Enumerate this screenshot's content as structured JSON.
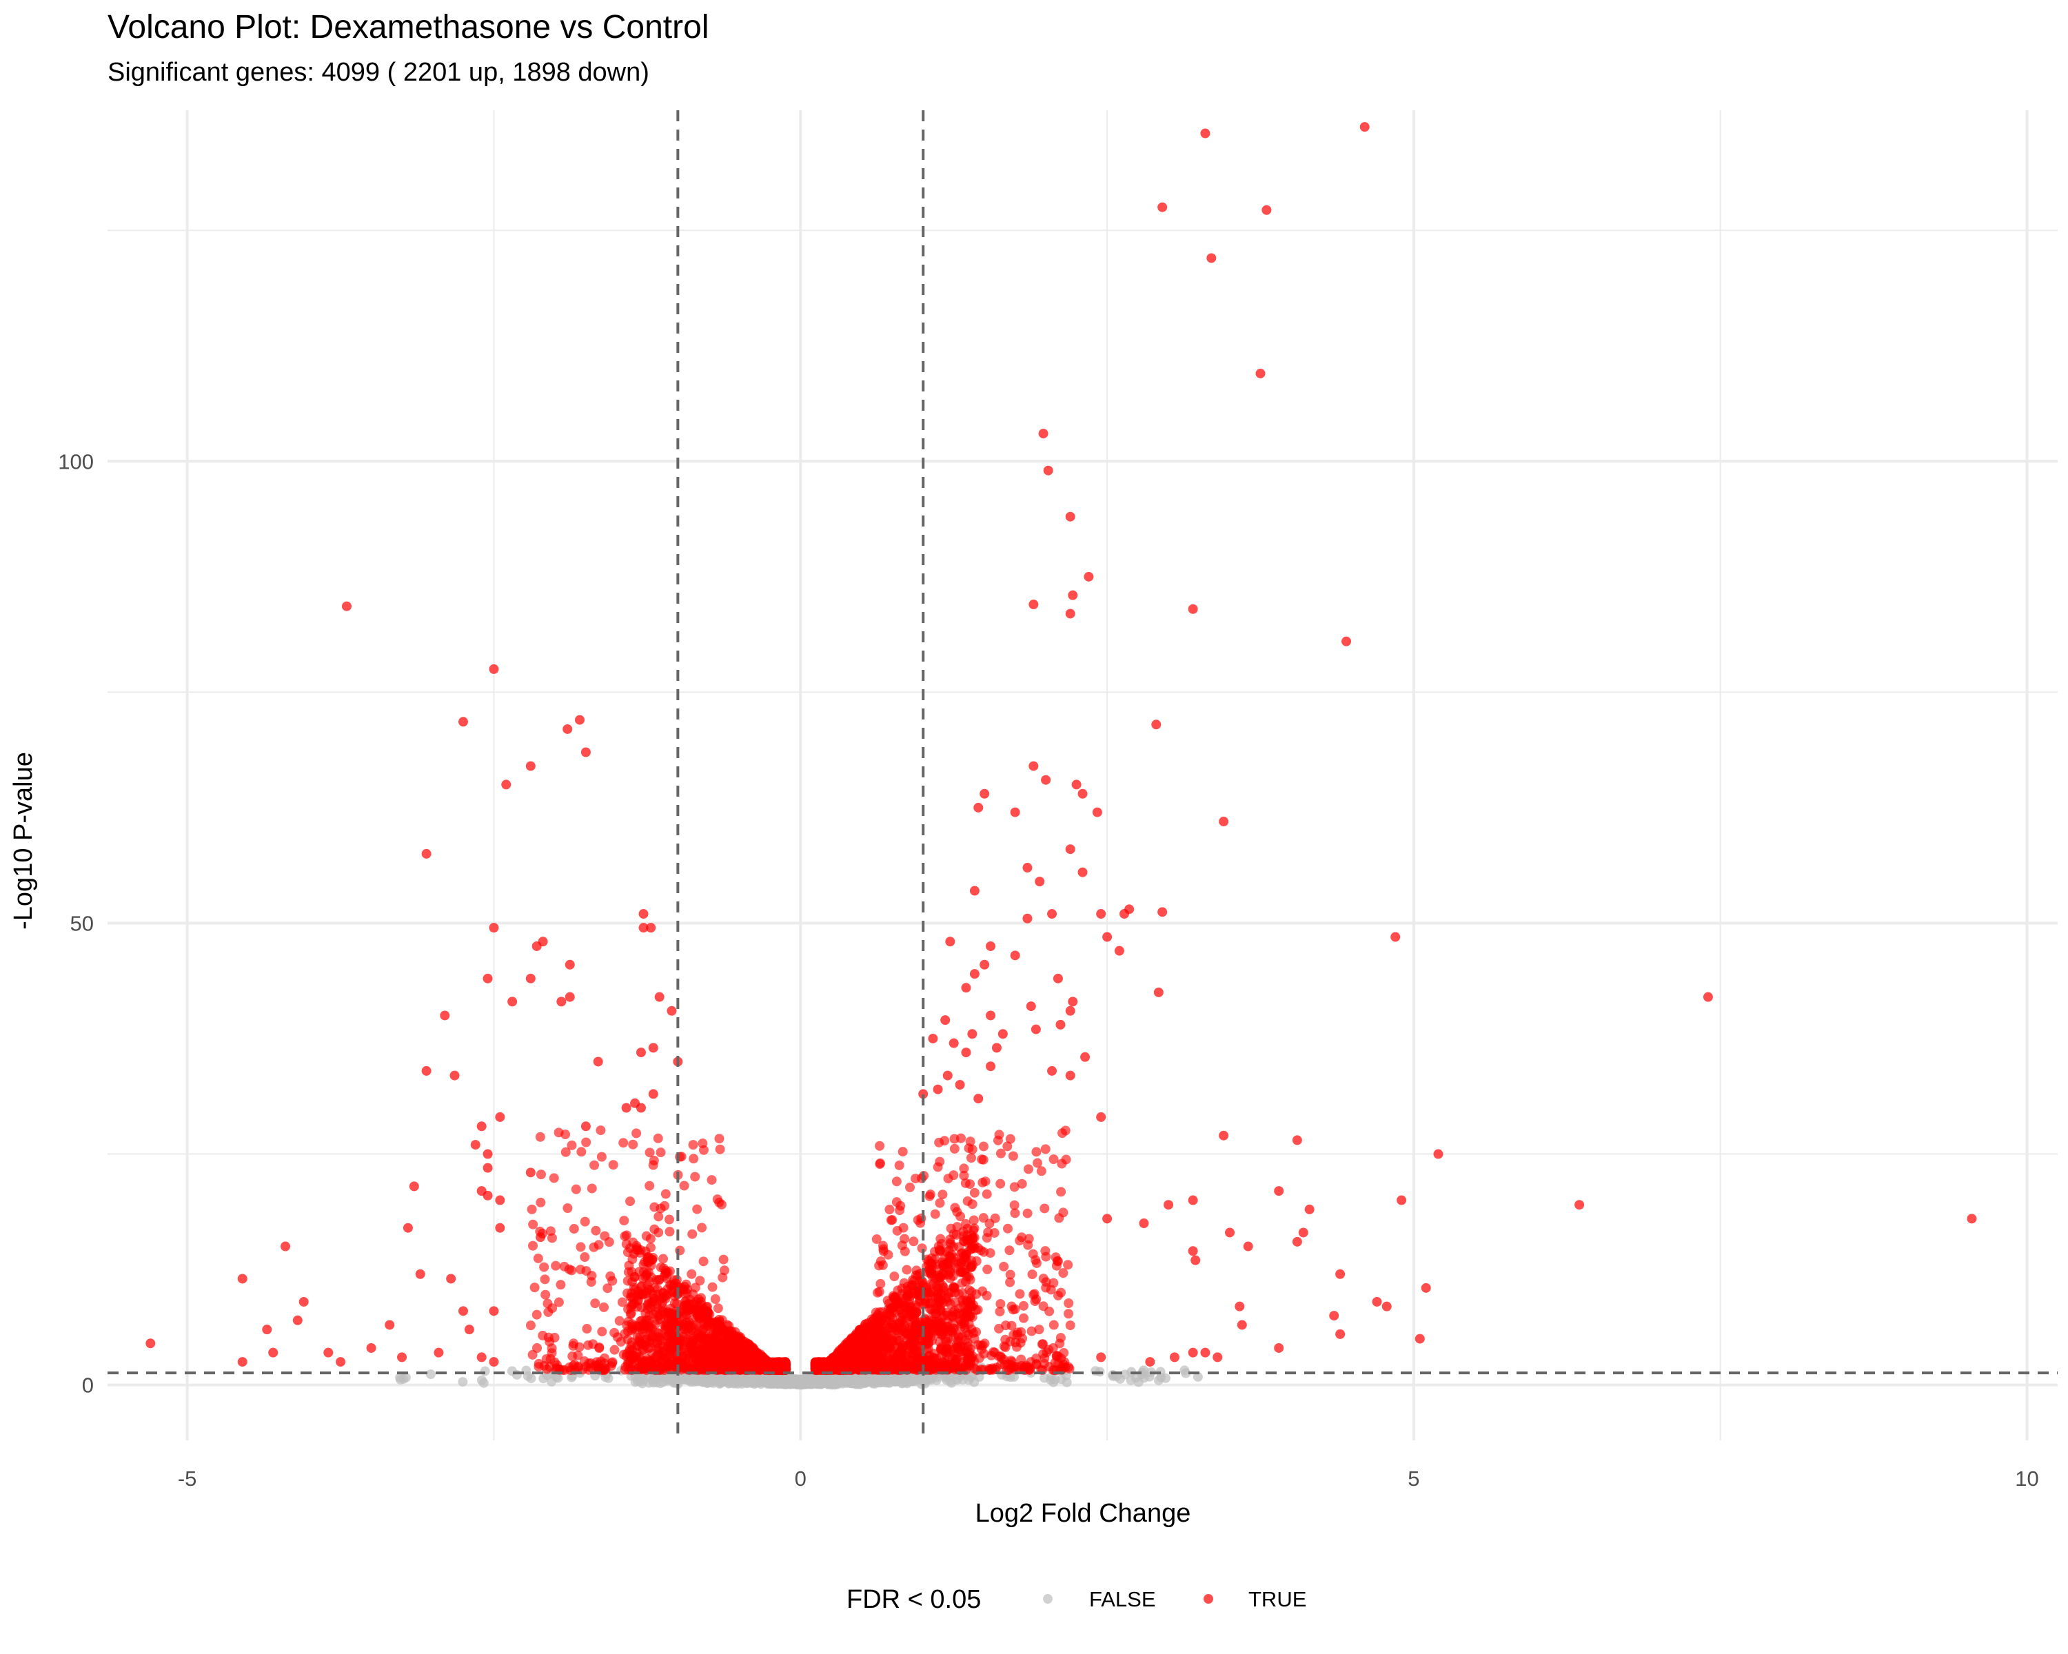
{
  "chart_data": {
    "type": "scatter",
    "title": "Volcano Plot: Dexamethasone vs Control",
    "subtitle": "Significant genes: 4099 ( 2201 up, 1898 down)",
    "xlabel": "Log2 Fold Change",
    "ylabel": "-Log10 P-value",
    "xlim": [
      -5.65,
      10.25
    ],
    "ylim": [
      -6,
      138
    ],
    "x_ticks": [
      -5,
      0,
      5,
      10
    ],
    "x_tick_labels": [
      "-5",
      "0",
      "5",
      "10"
    ],
    "y_ticks": [
      0,
      50,
      100
    ],
    "y_tick_labels": [
      "0",
      "50",
      "100"
    ],
    "grid": true,
    "threshold_lines": {
      "log2fc": [
        -1,
        1
      ],
      "neg_log10_p": 1.3
    },
    "legend": {
      "title": "FDR < 0.05",
      "position": "bottom",
      "entries": [
        {
          "label": "FALSE",
          "color": "#bebebe"
        },
        {
          "label": "TRUE",
          "color": "#ff0000"
        }
      ]
    },
    "colors": {
      "significant": "#ff0000",
      "not_significant": "#bebebe",
      "threshold": "#666666",
      "grid": "#ebebeb"
    },
    "significant_counts": {
      "total": 4099,
      "up": 2201,
      "down": 1898
    },
    "series": [
      {
        "name": "TRUE",
        "points": [
          [
            4.6,
            136.2
          ],
          [
            3.3,
            135.5
          ],
          [
            2.95,
            127.5
          ],
          [
            3.8,
            127.2
          ],
          [
            3.35,
            122.0
          ],
          [
            3.75,
            109.5
          ],
          [
            1.98,
            103.0
          ],
          [
            2.02,
            99.0
          ],
          [
            2.2,
            94.0
          ],
          [
            2.35,
            87.5
          ],
          [
            2.22,
            85.5
          ],
          [
            2.2,
            83.5
          ],
          [
            1.9,
            84.5
          ],
          [
            3.2,
            84.0
          ],
          [
            4.45,
            80.5
          ],
          [
            -3.7,
            84.3
          ],
          [
            -2.5,
            77.5
          ],
          [
            -2.75,
            71.8
          ],
          [
            -1.8,
            72.0
          ],
          [
            -1.9,
            71.0
          ],
          [
            -1.75,
            68.5
          ],
          [
            -2.2,
            67.0
          ],
          [
            -2.4,
            65.0
          ],
          [
            -3.05,
            57.5
          ],
          [
            1.9,
            67.0
          ],
          [
            2.0,
            65.5
          ],
          [
            2.25,
            65.0
          ],
          [
            2.3,
            64.0
          ],
          [
            1.5,
            64.0
          ],
          [
            1.45,
            62.5
          ],
          [
            1.75,
            62.0
          ],
          [
            2.42,
            62.0
          ],
          [
            3.45,
            61.0
          ],
          [
            2.9,
            71.5
          ],
          [
            1.85,
            56.0
          ],
          [
            2.2,
            58.0
          ],
          [
            2.3,
            55.5
          ],
          [
            1.95,
            54.5
          ],
          [
            1.42,
            53.5
          ],
          [
            2.68,
            51.5
          ],
          [
            2.64,
            51.0
          ],
          [
            2.95,
            51.2
          ],
          [
            2.45,
            51.0
          ],
          [
            1.85,
            50.5
          ],
          [
            2.05,
            51.0
          ],
          [
            4.85,
            48.5
          ],
          [
            2.5,
            48.5
          ],
          [
            2.6,
            47.0
          ],
          [
            1.75,
            46.5
          ],
          [
            1.55,
            47.5
          ],
          [
            1.22,
            48.0
          ],
          [
            1.5,
            45.5
          ],
          [
            1.42,
            44.5
          ],
          [
            2.1,
            44.0
          ],
          [
            1.35,
            43.0
          ],
          [
            2.92,
            42.5
          ],
          [
            2.22,
            41.5
          ],
          [
            1.88,
            41.0
          ],
          [
            2.2,
            40.5
          ],
          [
            1.55,
            40.0
          ],
          [
            1.18,
            39.5
          ],
          [
            2.12,
            39.0
          ],
          [
            1.4,
            38.0
          ],
          [
            1.92,
            38.5
          ],
          [
            1.65,
            38.0
          ],
          [
            1.08,
            37.5
          ],
          [
            1.25,
            37.0
          ],
          [
            1.6,
            36.5
          ],
          [
            1.35,
            36.0
          ],
          [
            2.32,
            35.5
          ],
          [
            2.05,
            34.0
          ],
          [
            1.55,
            34.5
          ],
          [
            1.2,
            33.5
          ],
          [
            2.2,
            33.5
          ],
          [
            1.3,
            32.5
          ],
          [
            1.12,
            32.0
          ],
          [
            1.0,
            31.5
          ],
          [
            1.45,
            31.0
          ],
          [
            2.45,
            29.0
          ],
          [
            3.45,
            27.0
          ],
          [
            4.05,
            26.5
          ],
          [
            5.2,
            25.0
          ],
          [
            3.9,
            21.0
          ],
          [
            4.15,
            19.0
          ],
          [
            3.0,
            19.5
          ],
          [
            3.2,
            20.0
          ],
          [
            4.9,
            20.0
          ],
          [
            6.35,
            19.5
          ],
          [
            9.55,
            18.0
          ],
          [
            7.4,
            42.0
          ],
          [
            2.5,
            18.0
          ],
          [
            2.8,
            17.5
          ],
          [
            3.5,
            16.5
          ],
          [
            4.1,
            16.5
          ],
          [
            4.05,
            15.5
          ],
          [
            3.65,
            15.0
          ],
          [
            3.2,
            14.5
          ],
          [
            3.22,
            13.5
          ],
          [
            4.4,
            12.0
          ],
          [
            5.1,
            10.5
          ],
          [
            4.7,
            9.0
          ],
          [
            4.78,
            8.5
          ],
          [
            4.35,
            7.5
          ],
          [
            4.4,
            5.5
          ],
          [
            5.05,
            5.0
          ],
          [
            3.58,
            8.5
          ],
          [
            3.6,
            6.5
          ],
          [
            3.9,
            4.0
          ],
          [
            3.2,
            3.5
          ],
          [
            3.05,
            3.0
          ],
          [
            2.45,
            3.0
          ],
          [
            2.85,
            2.5
          ],
          [
            3.3,
            3.5
          ],
          [
            3.4,
            3.0
          ],
          [
            -2.5,
            49.5
          ],
          [
            -2.15,
            47.5
          ],
          [
            -2.1,
            48.0
          ],
          [
            -1.88,
            45.5
          ],
          [
            -1.28,
            51.0
          ],
          [
            -1.28,
            49.5
          ],
          [
            -1.22,
            49.5
          ],
          [
            -1.15,
            42.0
          ],
          [
            -2.55,
            44.0
          ],
          [
            -2.2,
            44.0
          ],
          [
            -1.88,
            42.0
          ],
          [
            -1.95,
            41.5
          ],
          [
            -2.35,
            41.5
          ],
          [
            -2.9,
            40.0
          ],
          [
            -1.05,
            40.5
          ],
          [
            -1.3,
            36.0
          ],
          [
            -1.2,
            36.5
          ],
          [
            -1.65,
            35.0
          ],
          [
            -1.0,
            35.0
          ],
          [
            -2.82,
            33.5
          ],
          [
            -3.05,
            34.0
          ],
          [
            -1.2,
            31.5
          ],
          [
            -1.3,
            30.0
          ],
          [
            -1.35,
            30.5
          ],
          [
            -2.45,
            29.0
          ],
          [
            -2.6,
            28.0
          ],
          [
            -1.75,
            28.0
          ],
          [
            -1.42,
            30.0
          ],
          [
            -2.65,
            26.0
          ],
          [
            -2.55,
            25.0
          ],
          [
            -2.55,
            23.5
          ],
          [
            -2.2,
            23.0
          ],
          [
            -3.15,
            21.5
          ],
          [
            -2.6,
            21.0
          ],
          [
            -2.55,
            20.5
          ],
          [
            -2.45,
            20.0
          ],
          [
            -3.2,
            17.0
          ],
          [
            -2.45,
            17.0
          ],
          [
            -2.12,
            16.0
          ],
          [
            -4.2,
            15.0
          ],
          [
            -3.1,
            12.0
          ],
          [
            -4.55,
            11.5
          ],
          [
            -2.85,
            11.5
          ],
          [
            -4.05,
            9.0
          ],
          [
            -4.1,
            7.0
          ],
          [
            -2.75,
            8.0
          ],
          [
            -2.5,
            8.0
          ],
          [
            -4.35,
            6.0
          ],
          [
            -3.35,
            6.5
          ],
          [
            -2.7,
            6.0
          ],
          [
            -5.3,
            4.5
          ],
          [
            -4.3,
            3.5
          ],
          [
            -3.85,
            3.5
          ],
          [
            -3.5,
            4.0
          ],
          [
            -3.25,
            3.0
          ],
          [
            -2.95,
            3.5
          ],
          [
            -2.6,
            3.0
          ],
          [
            -2.5,
            2.5
          ],
          [
            -3.75,
            2.5
          ],
          [
            -4.55,
            2.5
          ]
        ]
      }
    ]
  }
}
